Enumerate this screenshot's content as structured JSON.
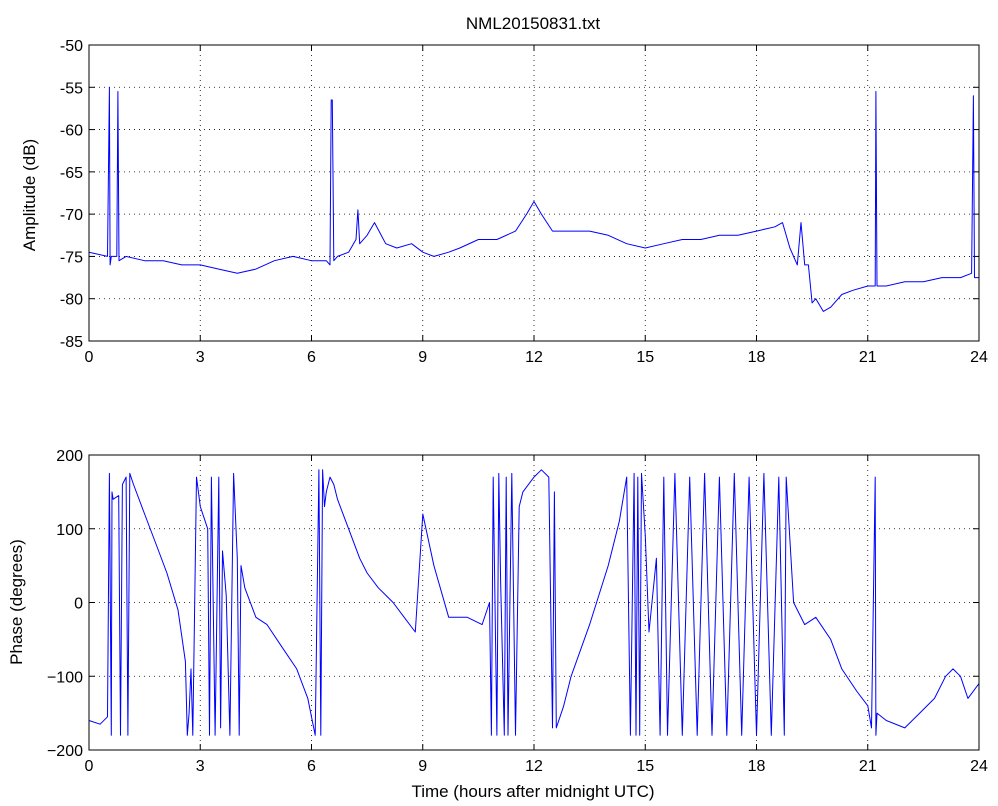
{
  "title": "NML20150831.txt",
  "colors": {
    "series": "#0000ff",
    "axes": "#000000",
    "background": "#ffffff"
  },
  "chart_data": [
    {
      "type": "line",
      "ylabel": "Amplitude (dB)",
      "xlabel": "",
      "xlim": [
        0,
        24
      ],
      "ylim": [
        -85,
        -50
      ],
      "xticks": [
        "0",
        "3",
        "6",
        "9",
        "12",
        "15",
        "18",
        "21",
        "24"
      ],
      "yticks": [
        "-50",
        "-55",
        "-60",
        "-65",
        "-70",
        "-75",
        "-80",
        "-85"
      ],
      "grid": true,
      "series": [
        {
          "x": [
            0,
            0.5,
            0.55,
            0.57,
            0.6,
            0.75,
            0.78,
            0.81,
            1.0,
            1.5,
            2.0,
            2.5,
            3.0,
            3.5,
            4.0,
            4.5,
            5.0,
            5.5,
            6.0,
            6.4,
            6.5,
            6.53,
            6.56,
            6.6,
            6.7,
            7.0,
            7.2,
            7.25,
            7.3,
            7.5,
            7.7,
            8.0,
            8.3,
            8.7,
            9.0,
            9.3,
            9.7,
            10.0,
            10.5,
            11.0,
            11.5,
            11.8,
            12.0,
            12.2,
            12.5,
            13.0,
            13.5,
            14.0,
            14.5,
            15.0,
            15.5,
            16.0,
            16.5,
            17.0,
            17.5,
            18.0,
            18.5,
            18.7,
            18.9,
            19.1,
            19.2,
            19.3,
            19.4,
            19.5,
            19.6,
            19.8,
            20.0,
            20.3,
            20.6,
            21.0,
            21.2,
            21.22,
            21.25,
            21.5,
            22.0,
            22.5,
            23.0,
            23.5,
            23.8,
            23.85,
            23.88,
            23.92,
            24.0
          ],
          "y": [
            -74.5,
            -75,
            -55,
            -76,
            -75,
            -75,
            -55.5,
            -75.5,
            -75,
            -75.5,
            -75.5,
            -76,
            -76,
            -76.5,
            -77,
            -76.5,
            -75.5,
            -75,
            -75.5,
            -75.5,
            -76,
            -56.5,
            -56.5,
            -75.5,
            -75,
            -74.5,
            -73,
            -69.5,
            -73.5,
            -72.5,
            -71,
            -73.5,
            -74,
            -73.5,
            -74.5,
            -75,
            -74.5,
            -74,
            -73,
            -73,
            -72,
            -70,
            -68.5,
            -70,
            -72,
            -72,
            -72,
            -72.5,
            -73.5,
            -74,
            -73.5,
            -73,
            -73,
            -72.5,
            -72.5,
            -72,
            -71.5,
            -71,
            -74,
            -76,
            -71,
            -76,
            -76,
            -80.5,
            -80,
            -81.5,
            -81,
            -79.5,
            -79,
            -78.5,
            -78.5,
            -55.5,
            -78.5,
            -78.5,
            -78,
            -78,
            -77.5,
            -77.5,
            -77,
            -56,
            -77.5,
            -77.5,
            -77.5
          ]
        }
      ]
    },
    {
      "type": "line",
      "ylabel": "Phase (degrees)",
      "xlabel": "Time (hours after midnight UTC)",
      "xlim": [
        0,
        24
      ],
      "ylim": [
        -200,
        200
      ],
      "xticks": [
        "0",
        "3",
        "6",
        "9",
        "12",
        "15",
        "18",
        "21",
        "24"
      ],
      "yticks": [
        "200",
        "100",
        "0",
        "−100",
        "−200"
      ],
      "grid": true,
      "series": [
        {
          "x": [
            0,
            0.3,
            0.5,
            0.55,
            0.6,
            0.62,
            0.65,
            0.8,
            0.85,
            0.9,
            1.0,
            1.05,
            1.1,
            1.2,
            1.5,
            1.8,
            2.1,
            2.4,
            2.6,
            2.65,
            2.7,
            2.75,
            2.8,
            2.9,
            3.0,
            3.2,
            3.25,
            3.3,
            3.4,
            3.5,
            3.55,
            3.6,
            3.7,
            3.8,
            3.9,
            4.0,
            4.05,
            4.1,
            4.2,
            4.5,
            4.8,
            5.2,
            5.6,
            5.9,
            6.1,
            6.2,
            6.25,
            6.3,
            6.35,
            6.4,
            6.5,
            6.6,
            6.7,
            7.0,
            7.3,
            7.5,
            7.8,
            8.0,
            8.2,
            8.5,
            8.8,
            9.0,
            9.3,
            9.7,
            10.2,
            10.6,
            10.8,
            10.85,
            10.9,
            11.0,
            11.05,
            11.1,
            11.2,
            11.25,
            11.3,
            11.4,
            11.5,
            11.6,
            11.7,
            12.0,
            12.2,
            12.4,
            12.5,
            12.55,
            12.6,
            12.8,
            13.0,
            13.5,
            14.0,
            14.3,
            14.5,
            14.6,
            14.7,
            14.75,
            14.8,
            14.85,
            14.9,
            15.0,
            15.1,
            15.3,
            15.4,
            15.5,
            15.6,
            15.8,
            16.0,
            16.2,
            16.4,
            16.6,
            16.8,
            17.0,
            17.2,
            17.4,
            17.6,
            17.8,
            18.0,
            18.2,
            18.4,
            18.6,
            18.75,
            18.8,
            19.0,
            19.3,
            19.6,
            20.0,
            20.3,
            20.7,
            21.0,
            21.1,
            21.2,
            21.22,
            21.25,
            21.5,
            22.0,
            22.4,
            22.8,
            23.1,
            23.3,
            23.5,
            23.7,
            24.0
          ],
          "y": [
            -160,
            -165,
            -155,
            175,
            -180,
            150,
            140,
            145,
            -180,
            160,
            170,
            -180,
            175,
            160,
            120,
            80,
            40,
            -10,
            -80,
            -180,
            -150,
            -90,
            -180,
            170,
            130,
            100,
            -180,
            170,
            -180,
            170,
            -170,
            70,
            10,
            -180,
            175,
            60,
            -180,
            50,
            20,
            -20,
            -30,
            -60,
            -90,
            -130,
            -180,
            180,
            -180,
            180,
            130,
            150,
            170,
            160,
            140,
            100,
            60,
            40,
            20,
            10,
            0,
            -20,
            -40,
            120,
            50,
            -20,
            -20,
            -30,
            0,
            -180,
            170,
            -180,
            175,
            30,
            -180,
            170,
            -180,
            175,
            -180,
            130,
            150,
            170,
            180,
            170,
            -170,
            150,
            -170,
            -140,
            -100,
            -30,
            50,
            110,
            170,
            -180,
            175,
            -180,
            170,
            -180,
            175,
            90,
            -40,
            60,
            -180,
            170,
            -180,
            175,
            -180,
            170,
            -180,
            175,
            -180,
            170,
            -180,
            175,
            -180,
            170,
            -180,
            175,
            -180,
            170,
            -180,
            170,
            0,
            -30,
            -20,
            -50,
            -90,
            -120,
            -140,
            -170,
            170,
            -180,
            -150,
            -160,
            -170,
            -150,
            -130,
            -100,
            -90,
            -100,
            -130,
            -110
          ]
        }
      ]
    }
  ]
}
